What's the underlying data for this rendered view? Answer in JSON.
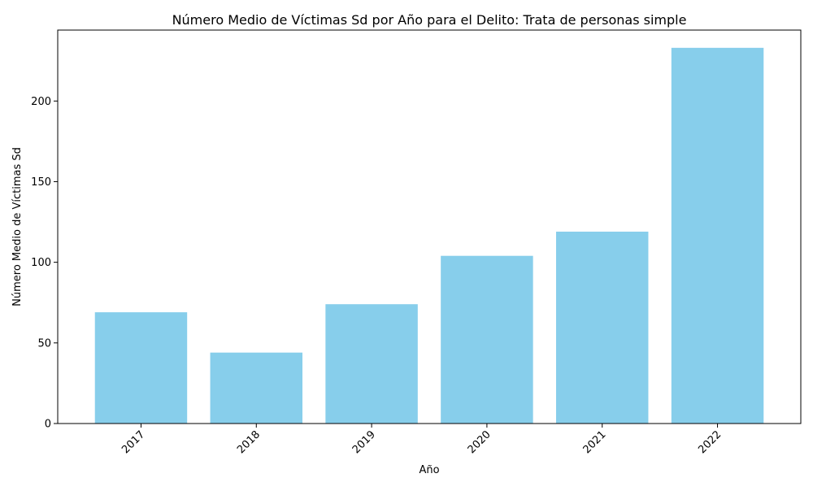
{
  "chart_data": {
    "type": "bar",
    "title": "Número Medio de Víctimas Sd por Año para el Delito: Trata de personas simple",
    "xlabel": "Año",
    "ylabel": "Número Medio de Víctimas Sd",
    "categories": [
      "2017",
      "2018",
      "2019",
      "2020",
      "2021",
      "2022"
    ],
    "values": [
      69,
      44,
      74,
      104,
      119,
      233
    ],
    "ylim": [
      0,
      244
    ],
    "yticks": [
      0,
      50,
      100,
      150,
      200
    ],
    "grid": false,
    "bar_color": "#87CEEB",
    "x_tick_rotation_deg": 45
  }
}
